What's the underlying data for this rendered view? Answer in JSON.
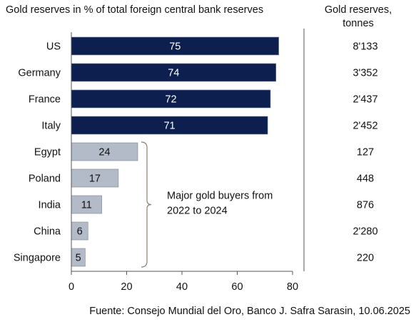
{
  "chart_data": {
    "type": "bar",
    "orientation": "horizontal",
    "title": "Gold reserves in % of total foreign central bank reserves",
    "secondary_column_title": "Gold reserves, tonnes",
    "categories": [
      "US",
      "Germany",
      "France",
      "Italy",
      "Egypt",
      "Poland",
      "India",
      "China",
      "Singapore"
    ],
    "values": [
      75,
      74,
      72,
      71,
      24,
      17,
      11,
      6,
      5
    ],
    "value_labels": [
      "75",
      "74",
      "72",
      "71",
      "24",
      "17",
      "11",
      "6",
      "5"
    ],
    "tonnes": [
      "8'133",
      "3'352",
      "2'437",
      "2'452",
      "127",
      "448",
      "876",
      "2'280",
      "220"
    ],
    "bar_colors": [
      "#0d1f4f",
      "#0d1f4f",
      "#0d1f4f",
      "#0d1f4f",
      "#b3bbc9",
      "#b3bbc9",
      "#b3bbc9",
      "#b3bbc9",
      "#b3bbc9"
    ],
    "label_colors": [
      "#ffffff",
      "#ffffff",
      "#ffffff",
      "#ffffff",
      "#111111",
      "#111111",
      "#111111",
      "#111111",
      "#111111"
    ],
    "xlim": [
      0,
      80
    ],
    "xticks": [
      0,
      20,
      40,
      60,
      80
    ],
    "grid": false,
    "annotation": {
      "lines": [
        "Major gold buyers from",
        "2022 to 2024"
      ],
      "bracket_from_category": "Egypt",
      "bracket_to_category": "Singapore"
    },
    "source": "Fuente: Consejo Mundial del Oro, Banco J. Safra Sarasin, 10.06.2025"
  }
}
